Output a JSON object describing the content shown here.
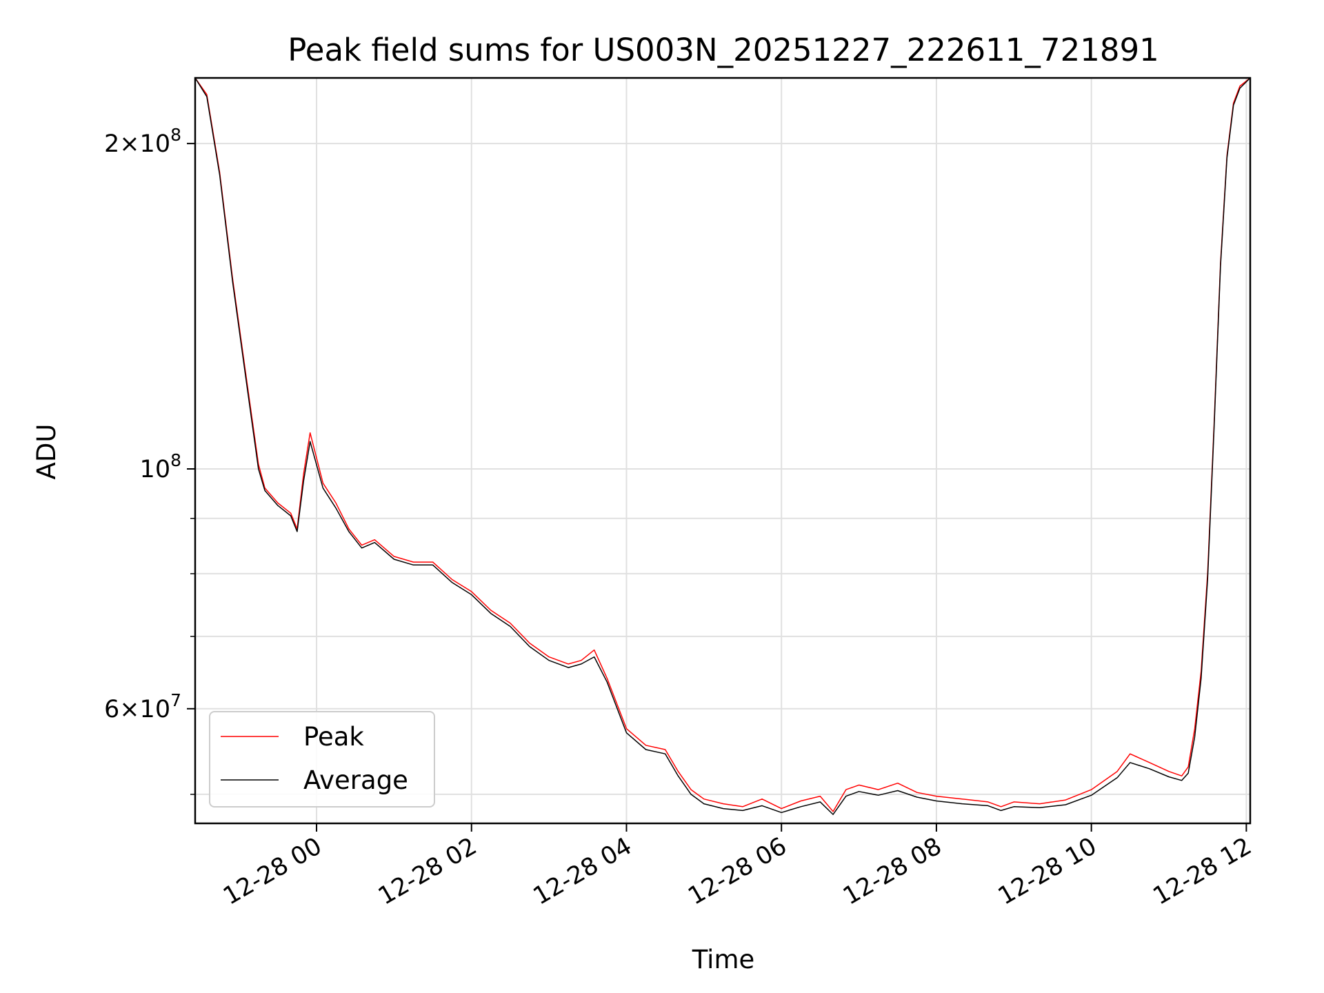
{
  "chart_data": {
    "type": "line",
    "title": "Peak field sums for US003N_20251227_222611_721891",
    "xlabel": "Time",
    "ylabel": "ADU",
    "y_scale": "log",
    "xlim": [
      "2025-12-27 22:26",
      "2025-12-28 12:03"
    ],
    "ylim": [
      47000000,
      230000000
    ],
    "x_ticks": [
      "12-28 00",
      "12-28 02",
      "12-28 04",
      "12-28 06",
      "12-28 08",
      "12-28 10",
      "12-28 12"
    ],
    "x_tick_values": [
      "2025-12-28 00:00",
      "2025-12-28 02:00",
      "2025-12-28 04:00",
      "2025-12-28 06:00",
      "2025-12-28 08:00",
      "2025-12-28 10:00",
      "2025-12-28 12:00"
    ],
    "y_major_ticks": [
      {
        "value": 200000000,
        "label_mantissa": "2",
        "label_exp": "8",
        "style": "mantissa"
      },
      {
        "value": 100000000,
        "label_mantissa": "",
        "label_exp": "8",
        "style": "pow10"
      },
      {
        "value": 60000000,
        "label_mantissa": "6",
        "label_exp": "7",
        "style": "mantissa"
      }
    ],
    "y_minor_ticks": [
      50000000,
      70000000,
      80000000,
      90000000
    ],
    "grid": true,
    "legend_position": "lower-left",
    "series": [
      {
        "name": "Peak",
        "color": "#ff0000",
        "x": [
          "2025-12-27 22:26",
          "2025-12-27 22:35",
          "2025-12-27 22:45",
          "2025-12-27 22:55",
          "2025-12-27 23:05",
          "2025-12-27 23:15",
          "2025-12-27 23:20",
          "2025-12-27 23:30",
          "2025-12-27 23:40",
          "2025-12-27 23:45",
          "2025-12-27 23:50",
          "2025-12-27 23:55",
          "2025-12-28 00:05",
          "2025-12-28 00:15",
          "2025-12-28 00:25",
          "2025-12-28 00:35",
          "2025-12-28 00:45",
          "2025-12-28 01:00",
          "2025-12-28 01:15",
          "2025-12-28 01:30",
          "2025-12-28 01:45",
          "2025-12-28 02:00",
          "2025-12-28 02:15",
          "2025-12-28 02:30",
          "2025-12-28 02:45",
          "2025-12-28 03:00",
          "2025-12-28 03:15",
          "2025-12-28 03:25",
          "2025-12-28 03:35",
          "2025-12-28 03:45",
          "2025-12-28 04:00",
          "2025-12-28 04:15",
          "2025-12-28 04:30",
          "2025-12-28 04:40",
          "2025-12-28 04:50",
          "2025-12-28 05:00",
          "2025-12-28 05:15",
          "2025-12-28 05:30",
          "2025-12-28 05:45",
          "2025-12-28 06:00",
          "2025-12-28 06:15",
          "2025-12-28 06:30",
          "2025-12-28 06:40",
          "2025-12-28 06:50",
          "2025-12-28 07:00",
          "2025-12-28 07:15",
          "2025-12-28 07:30",
          "2025-12-28 07:45",
          "2025-12-28 08:00",
          "2025-12-28 08:20",
          "2025-12-28 08:40",
          "2025-12-28 08:50",
          "2025-12-28 09:00",
          "2025-12-28 09:20",
          "2025-12-28 09:40",
          "2025-12-28 10:00",
          "2025-12-28 10:20",
          "2025-12-28 10:30",
          "2025-12-28 10:45",
          "2025-12-28 11:00",
          "2025-12-28 11:10",
          "2025-12-28 11:15",
          "2025-12-28 11:20",
          "2025-12-28 11:25",
          "2025-12-28 11:30",
          "2025-12-28 11:35",
          "2025-12-28 11:40",
          "2025-12-28 11:45",
          "2025-12-28 11:50",
          "2025-12-28 11:55",
          "2025-12-28 12:03"
        ],
        "y": [
          230000000,
          222000000,
          188000000,
          150000000,
          123000000,
          101000000,
          96000000,
          93000000,
          91000000,
          88000000,
          99000000,
          108000000,
          97000000,
          93000000,
          88000000,
          85000000,
          86000000,
          83000000,
          82000000,
          82000000,
          79000000,
          77000000,
          74000000,
          72000000,
          69000000,
          67000000,
          66000000,
          66500000,
          68000000,
          64000000,
          57500000,
          55500000,
          55000000,
          52500000,
          50500000,
          49500000,
          49000000,
          48700000,
          49500000,
          48500000,
          49300000,
          49800000,
          48200000,
          50500000,
          51000000,
          50500000,
          51200000,
          50200000,
          49800000,
          49500000,
          49200000,
          48700000,
          49200000,
          49000000,
          49400000,
          50500000,
          52500000,
          54500000,
          53500000,
          52500000,
          52000000,
          53000000,
          57500000,
          65000000,
          80000000,
          110000000,
          155000000,
          195000000,
          218000000,
          226000000,
          230000000
        ]
      },
      {
        "name": "Average",
        "color": "#000000",
        "x": [
          "2025-12-27 22:26",
          "2025-12-27 22:35",
          "2025-12-27 22:45",
          "2025-12-27 22:55",
          "2025-12-27 23:05",
          "2025-12-27 23:15",
          "2025-12-27 23:20",
          "2025-12-27 23:30",
          "2025-12-27 23:40",
          "2025-12-27 23:45",
          "2025-12-27 23:50",
          "2025-12-27 23:55",
          "2025-12-28 00:05",
          "2025-12-28 00:15",
          "2025-12-28 00:25",
          "2025-12-28 00:35",
          "2025-12-28 00:45",
          "2025-12-28 01:00",
          "2025-12-28 01:15",
          "2025-12-28 01:30",
          "2025-12-28 01:45",
          "2025-12-28 02:00",
          "2025-12-28 02:15",
          "2025-12-28 02:30",
          "2025-12-28 02:45",
          "2025-12-28 03:00",
          "2025-12-28 03:15",
          "2025-12-28 03:25",
          "2025-12-28 03:35",
          "2025-12-28 03:45",
          "2025-12-28 04:00",
          "2025-12-28 04:15",
          "2025-12-28 04:30",
          "2025-12-28 04:40",
          "2025-12-28 04:50",
          "2025-12-28 05:00",
          "2025-12-28 05:15",
          "2025-12-28 05:30",
          "2025-12-28 05:45",
          "2025-12-28 06:00",
          "2025-12-28 06:15",
          "2025-12-28 06:30",
          "2025-12-28 06:40",
          "2025-12-28 06:50",
          "2025-12-28 07:00",
          "2025-12-28 07:15",
          "2025-12-28 07:30",
          "2025-12-28 07:45",
          "2025-12-28 08:00",
          "2025-12-28 08:20",
          "2025-12-28 08:40",
          "2025-12-28 08:50",
          "2025-12-28 09:00",
          "2025-12-28 09:20",
          "2025-12-28 09:40",
          "2025-12-28 10:00",
          "2025-12-28 10:20",
          "2025-12-28 10:30",
          "2025-12-28 10:45",
          "2025-12-28 11:00",
          "2025-12-28 11:10",
          "2025-12-28 11:15",
          "2025-12-28 11:20",
          "2025-12-28 11:25",
          "2025-12-28 11:30",
          "2025-12-28 11:35",
          "2025-12-28 11:40",
          "2025-12-28 11:45",
          "2025-12-28 11:50",
          "2025-12-28 11:55",
          "2025-12-28 12:03"
        ],
        "y": [
          230000000,
          221000000,
          187000000,
          149000000,
          122000000,
          100000000,
          95500000,
          92500000,
          90500000,
          87500000,
          97500000,
          106000000,
          96000000,
          92000000,
          87500000,
          84500000,
          85500000,
          82500000,
          81500000,
          81500000,
          78500000,
          76500000,
          73500000,
          71500000,
          68500000,
          66500000,
          65500000,
          66000000,
          67000000,
          63500000,
          57000000,
          55000000,
          54500000,
          52000000,
          50000000,
          49000000,
          48500000,
          48300000,
          48800000,
          48100000,
          48700000,
          49200000,
          47900000,
          49800000,
          50300000,
          49900000,
          50400000,
          49700000,
          49300000,
          49000000,
          48800000,
          48300000,
          48700000,
          48600000,
          48900000,
          49900000,
          51800000,
          53500000,
          52800000,
          51900000,
          51500000,
          52300000,
          56500000,
          64000000,
          79000000,
          109000000,
          154000000,
          194000000,
          217000000,
          225000000,
          230000000
        ]
      }
    ]
  }
}
